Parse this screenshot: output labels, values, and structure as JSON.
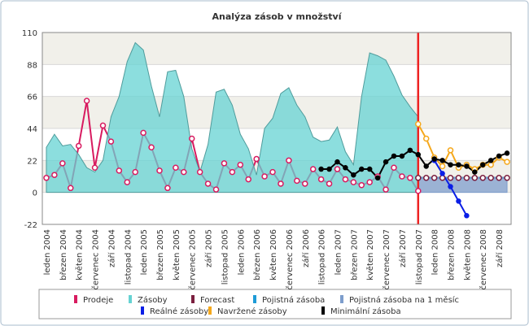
{
  "chart_data": {
    "type": "line",
    "title": "Analýza zásob v množství",
    "categories": [
      "leden 2004",
      null,
      "březen 2004",
      null,
      "květen 2004",
      null,
      "červenec 2004",
      null,
      "září 2004",
      null,
      "listopad 2004",
      null,
      "leden 2005",
      null,
      "březen 2005",
      null,
      "květen 2005",
      null,
      "červenec 2005",
      null,
      "září 2005",
      null,
      "listopad 2005",
      null,
      "leden 2006",
      null,
      "březen 2006",
      null,
      "květen 2006",
      null,
      "červenec 2006",
      null,
      "září 2006",
      null,
      "listopad 2006",
      null,
      "leden 2007",
      null,
      "březen 2007",
      null,
      "květen 2007",
      null,
      "červenec 2007",
      null,
      "září 2007",
      null,
      "listopad 2007",
      null,
      "leden 2008",
      null,
      "březen 2008",
      null,
      "květen 2008",
      null,
      "červenec 2008",
      null,
      "září 2008",
      null
    ],
    "ylim": [
      -22,
      110
    ],
    "yticks": [
      -22,
      0,
      22,
      44,
      66,
      88,
      110
    ],
    "grid": true,
    "series": [
      {
        "name": "Prodeje",
        "type": "line",
        "markers": true,
        "color": "#d81b60",
        "values": [
          10,
          12,
          20,
          3,
          32,
          63,
          17,
          46,
          35,
          15,
          7,
          14,
          41,
          31,
          15,
          3,
          17,
          14,
          37,
          14,
          6,
          2,
          20,
          14,
          19,
          9,
          23,
          11,
          14,
          6,
          22,
          8,
          6,
          16,
          9,
          6,
          16,
          9,
          7,
          5,
          7,
          11,
          2,
          17,
          11,
          10,
          1,
          null,
          null,
          null,
          null,
          null,
          null,
          null,
          null,
          null,
          null,
          null
        ]
      },
      {
        "name": "Zásoby",
        "type": "area",
        "markers": false,
        "color": "#66d3d3",
        "values": [
          31,
          40,
          32,
          33,
          26,
          17,
          14,
          22,
          52,
          66,
          90,
          103,
          98,
          73,
          52,
          83,
          84,
          66,
          30,
          14,
          33,
          69,
          71,
          60,
          40,
          30,
          12,
          44,
          51,
          68,
          72,
          60,
          52,
          38,
          35,
          36,
          45,
          28,
          19,
          66,
          96,
          94,
          91,
          80,
          67,
          59,
          52,
          null,
          null,
          null,
          null,
          null,
          null,
          null,
          null,
          null,
          null,
          null
        ]
      },
      {
        "name": "Forecast",
        "type": "line",
        "markers": true,
        "color": "#7b1f3f",
        "values": [
          null,
          null,
          null,
          null,
          null,
          null,
          null,
          null,
          null,
          null,
          null,
          null,
          null,
          null,
          null,
          null,
          null,
          null,
          null,
          null,
          null,
          null,
          null,
          null,
          null,
          null,
          null,
          null,
          null,
          null,
          null,
          null,
          null,
          null,
          null,
          null,
          null,
          null,
          null,
          null,
          null,
          null,
          null,
          null,
          null,
          null,
          10,
          10,
          10,
          10,
          10,
          10,
          10,
          10,
          10,
          10,
          10,
          10
        ]
      },
      {
        "name": "Pojistná zásoba",
        "type": "line",
        "markers": false,
        "color": "#1e9bd7",
        "values": [
          null,
          null,
          null,
          null,
          null,
          null,
          null,
          null,
          null,
          null,
          null,
          null,
          null,
          null,
          null,
          null,
          null,
          null,
          null,
          null,
          null,
          null,
          null,
          null,
          null,
          null,
          null,
          null,
          null,
          null,
          null,
          null,
          null,
          null,
          null,
          null,
          null,
          null,
          null,
          null,
          null,
          null,
          null,
          null,
          null,
          null,
          10,
          10,
          10,
          10,
          10,
          10,
          10,
          10,
          10,
          10,
          10,
          10
        ]
      },
      {
        "name": "Pojistná zásoba na 1 měsíc",
        "type": "area",
        "markers": false,
        "color": "#7d9dcc",
        "values": [
          null,
          null,
          null,
          null,
          null,
          null,
          null,
          null,
          null,
          null,
          null,
          null,
          null,
          null,
          null,
          null,
          null,
          null,
          null,
          null,
          null,
          null,
          null,
          null,
          null,
          null,
          null,
          null,
          null,
          null,
          null,
          null,
          null,
          null,
          null,
          null,
          null,
          null,
          null,
          null,
          null,
          null,
          null,
          null,
          null,
          null,
          10,
          10,
          10,
          10,
          10,
          10,
          10,
          10,
          10,
          10,
          10,
          10
        ]
      },
      {
        "name": "Reálné zásoby",
        "type": "line",
        "markers": true,
        "color": "#0a1ee6",
        "values": [
          null,
          null,
          null,
          null,
          null,
          null,
          null,
          null,
          null,
          null,
          null,
          null,
          null,
          null,
          null,
          null,
          null,
          null,
          null,
          null,
          null,
          null,
          null,
          null,
          null,
          null,
          null,
          null,
          null,
          null,
          null,
          null,
          null,
          null,
          null,
          null,
          null,
          null,
          null,
          null,
          null,
          null,
          null,
          null,
          null,
          null,
          null,
          null,
          22,
          13,
          4,
          -6,
          -16,
          null,
          null,
          null,
          null,
          null
        ]
      },
      {
        "name": "Navržené zásoby",
        "type": "line",
        "markers": true,
        "color": "#f5a81c",
        "values": [
          null,
          null,
          null,
          null,
          null,
          null,
          null,
          null,
          null,
          null,
          null,
          null,
          null,
          null,
          null,
          null,
          null,
          null,
          null,
          null,
          null,
          null,
          null,
          null,
          null,
          null,
          null,
          null,
          null,
          null,
          null,
          null,
          null,
          null,
          null,
          null,
          null,
          null,
          null,
          null,
          null,
          null,
          null,
          null,
          null,
          null,
          47,
          37,
          24,
          18,
          29,
          17,
          19,
          16,
          19,
          19,
          24,
          21
        ]
      },
      {
        "name": "Minimální zásoba",
        "type": "line",
        "markers": true,
        "color": "#000000",
        "values": [
          null,
          null,
          null,
          null,
          null,
          null,
          null,
          null,
          null,
          null,
          null,
          null,
          null,
          null,
          null,
          null,
          null,
          null,
          null,
          null,
          null,
          null,
          null,
          null,
          null,
          null,
          null,
          null,
          null,
          null,
          null,
          null,
          null,
          null,
          16,
          16,
          21,
          17,
          12,
          16,
          16,
          10,
          21,
          25,
          25,
          29,
          26,
          18,
          23,
          22,
          19,
          19,
          18,
          14,
          19,
          22,
          25,
          27
        ]
      }
    ]
  }
}
